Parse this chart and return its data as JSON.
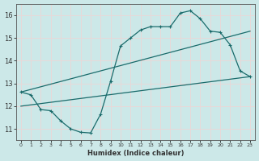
{
  "xlabel": "Humidex (Indice chaleur)",
  "xlim": [
    -0.5,
    23.5
  ],
  "ylim": [
    10.5,
    16.5
  ],
  "yticks": [
    11,
    12,
    13,
    14,
    15,
    16
  ],
  "xticks": [
    0,
    1,
    2,
    3,
    4,
    5,
    6,
    7,
    8,
    9,
    10,
    11,
    12,
    13,
    14,
    15,
    16,
    17,
    18,
    19,
    20,
    21,
    22,
    23
  ],
  "bg_color": "#cce8e8",
  "grid_color": "#e8d8d8",
  "line_color": "#1a6b6b",
  "curve1_x": [
    0,
    1,
    2,
    3,
    4,
    5,
    6,
    7,
    8,
    9,
    10,
    11,
    12,
    13,
    14,
    15,
    16,
    17,
    18,
    19,
    20,
    21,
    22,
    23
  ],
  "curve1_y": [
    12.62,
    12.5,
    11.85,
    11.8,
    11.35,
    11.0,
    10.85,
    10.82,
    11.65,
    13.1,
    14.65,
    15.0,
    15.35,
    15.5,
    15.5,
    15.5,
    16.1,
    16.2,
    15.85,
    15.3,
    15.25,
    14.7,
    13.55,
    13.3
  ],
  "line1_x": [
    0,
    23
  ],
  "line1_y": [
    12.62,
    15.3
  ],
  "line2_x": [
    0,
    23
  ],
  "line2_y": [
    12.0,
    13.3
  ]
}
